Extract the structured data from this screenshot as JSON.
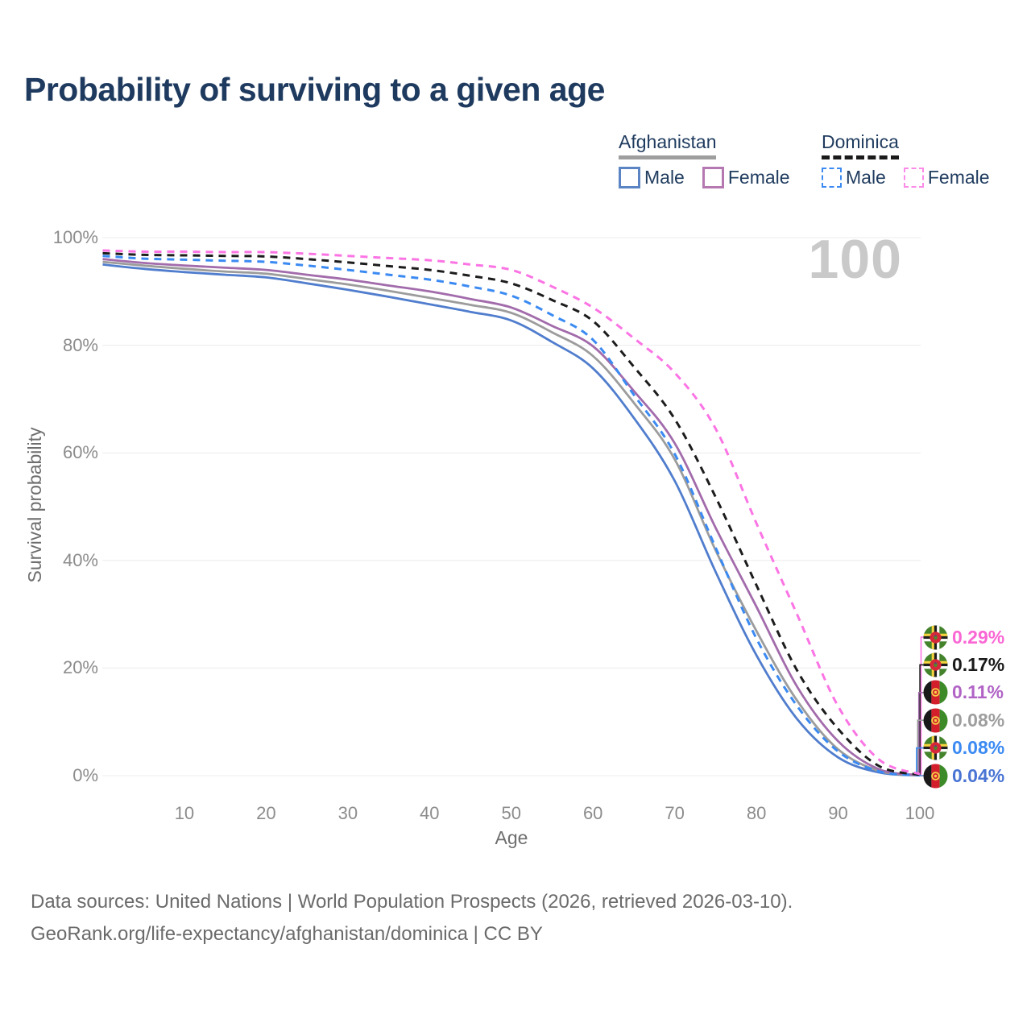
{
  "title": "Probability of surviving to a given age",
  "watermark_age": "100",
  "legend": {
    "groups": [
      {
        "label": "Afghanistan",
        "line_style": "solid",
        "underline_color": "#9e9e9e",
        "items": [
          {
            "label": "Male",
            "color": "#5b84c4"
          },
          {
            "label": "Female",
            "color": "#b578b0"
          }
        ]
      },
      {
        "label": "Dominica",
        "line_style": "dashed",
        "underline_color": "#1a1a1a",
        "items": [
          {
            "label": "Male",
            "color": "#3b8af2"
          },
          {
            "label": "Female",
            "color": "#fb8ae8"
          }
        ]
      }
    ]
  },
  "axes": {
    "x": {
      "label": "Age",
      "min": 0,
      "max": 100,
      "ticks": [
        10,
        20,
        30,
        40,
        50,
        60,
        70,
        80,
        90,
        100
      ]
    },
    "y": {
      "label": "Survival probability",
      "min": 0,
      "max": 100,
      "tick_labels": [
        "0%",
        "20%",
        "40%",
        "60%",
        "80%",
        "100%"
      ],
      "tick_values": [
        0,
        20,
        40,
        60,
        80,
        100
      ]
    }
  },
  "chart_data": {
    "type": "line",
    "title": "Probability of surviving to a given age",
    "xlabel": "Age",
    "ylabel": "Survival probability",
    "xlim": [
      0,
      100
    ],
    "ylim": [
      0,
      100
    ],
    "grid": "horizontal",
    "legend_position": "top-right",
    "x": [
      0,
      5,
      10,
      15,
      20,
      25,
      30,
      35,
      40,
      45,
      50,
      55,
      60,
      65,
      70,
      75,
      80,
      85,
      90,
      95,
      100
    ],
    "series": [
      {
        "name": "Afghanistan Male",
        "country": "Afghanistan",
        "sex": "Male",
        "color": "#507dcd",
        "label_color": "#4a74d4",
        "dash": "solid",
        "flag_icon": "afghanistan-flag-icon",
        "end_label": "0.04%",
        "values": [
          95.0,
          94.2,
          93.6,
          93.1,
          92.6,
          91.5,
          90.3,
          89.0,
          87.6,
          86.2,
          84.6,
          80.6,
          75.7,
          66.5,
          54.8,
          37.9,
          22.4,
          10.5,
          3.4,
          0.6,
          0.04
        ]
      },
      {
        "name": "Afghanistan Both sexes",
        "country": "Afghanistan",
        "sex": "Both",
        "color": "#9c9c9c",
        "label_color": "#9e9e9e",
        "dash": "solid",
        "flag_icon": "afghanistan-flag-icon",
        "end_label": "0.08%",
        "values": [
          95.5,
          94.8,
          94.2,
          93.7,
          93.3,
          92.3,
          91.3,
          90.1,
          88.8,
          87.5,
          86.0,
          82.4,
          78.0,
          69.3,
          58.8,
          41.9,
          26.9,
          13.9,
          4.9,
          0.9,
          0.08
        ]
      },
      {
        "name": "Afghanistan Female",
        "country": "Afghanistan",
        "sex": "Female",
        "color": "#a26bab",
        "label_color": "#b164c6",
        "dash": "solid",
        "flag_icon": "afghanistan-flag-icon",
        "end_label": "0.11%",
        "values": [
          96.0,
          95.3,
          94.8,
          94.4,
          94.0,
          93.1,
          92.2,
          91.1,
          90.0,
          88.6,
          87.0,
          83.6,
          79.8,
          71.5,
          61.8,
          46.1,
          31.4,
          16.5,
          6.4,
          1.2,
          0.11
        ]
      },
      {
        "name": "Dominica Male",
        "country": "Dominica",
        "sex": "Male",
        "color": "#3b8af2",
        "label_color": "#3b8af2",
        "dash": "dashed",
        "flag_icon": "dominica-flag-icon",
        "end_label": "0.08%",
        "values": [
          96.6,
          96.1,
          95.9,
          95.7,
          95.5,
          94.8,
          94.0,
          93.1,
          92.2,
          90.9,
          89.2,
          85.6,
          81.0,
          70.8,
          59.8,
          42.4,
          25.5,
          12.9,
          4.5,
          0.8,
          0.08
        ]
      },
      {
        "name": "Dominica Both sexes",
        "country": "Dominica",
        "sex": "Both",
        "color": "#1c1c1c",
        "label_color": "#1a1a1a",
        "dash": "dashed",
        "flag_icon": "dominica-flag-icon",
        "end_label": "0.17%",
        "values": [
          97.1,
          96.8,
          96.7,
          96.6,
          96.5,
          96.0,
          95.4,
          94.7,
          94.0,
          92.9,
          91.5,
          88.4,
          84.5,
          76.0,
          66.3,
          51.8,
          35.4,
          19.5,
          8.7,
          1.8,
          0.17
        ]
      },
      {
        "name": "Dominica Female",
        "country": "Dominica",
        "sex": "Female",
        "color": "#fb74e4",
        "label_color": "#fa66d4",
        "dash": "dashed",
        "flag_icon": "dominica-flag-icon",
        "end_label": "0.29%",
        "values": [
          97.6,
          97.4,
          97.4,
          97.3,
          97.3,
          97.0,
          96.6,
          96.2,
          95.8,
          95.0,
          94.0,
          90.9,
          87.0,
          81.3,
          74.9,
          64.5,
          46.9,
          29.9,
          12.9,
          3.0,
          0.29
        ]
      }
    ]
  },
  "footer": {
    "line1": "Data sources: United Nations | World Population Prospects (2026, retrieved 2026-03-10).",
    "line2": "GeoRank.org/life-expectancy/afghanistan/dominica | CC BY"
  }
}
